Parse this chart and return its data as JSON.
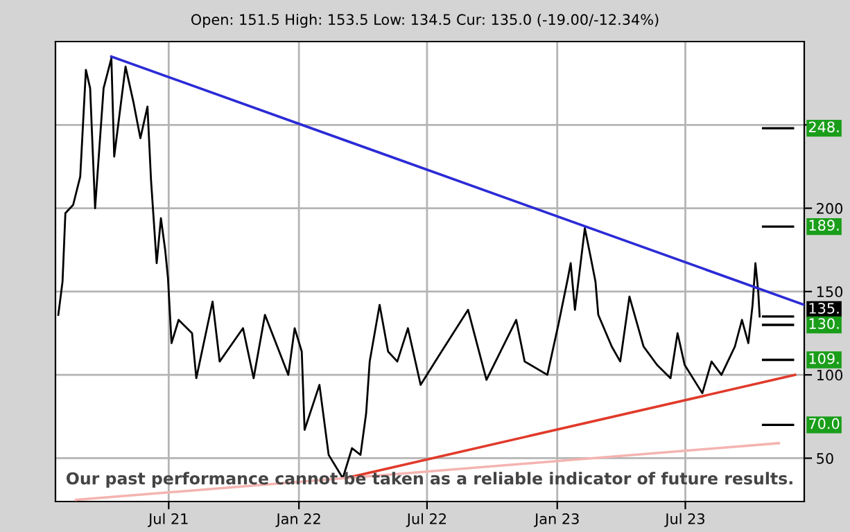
{
  "chart_data": {
    "type": "line",
    "title": "Open: 151.5 High: 153.5 Low: 134.5 Cur: 135.0 (-19.00/-12.34%)",
    "x": [
      "2021-01-26",
      "2021-02-01",
      "2021-02-05",
      "2021-02-16",
      "2021-02-26",
      "2021-03-06",
      "2021-03-12",
      "2021-03-19",
      "2021-03-31",
      "2021-04-11",
      "2021-04-15",
      "2021-05-01",
      "2021-05-12",
      "2021-05-22",
      "2021-06-01",
      "2021-06-06",
      "2021-06-14",
      "2021-06-20",
      "2021-06-26",
      "2021-06-30",
      "2021-07-05",
      "2021-07-15",
      "2021-08-03",
      "2021-08-09",
      "2021-09-01",
      "2021-09-11",
      "2021-10-14",
      "2021-10-29",
      "2021-11-14",
      "2021-12-17",
      "2021-12-26",
      "2022-01-05",
      "2022-01-09",
      "2022-01-30",
      "2022-02-12",
      "2022-03-04",
      "2022-03-17",
      "2022-03-29",
      "2022-04-06",
      "2022-04-11",
      "2022-04-25",
      "2022-05-07",
      "2022-05-20",
      "2022-06-04",
      "2022-06-22",
      "2022-07-17",
      "2022-08-28",
      "2022-09-23",
      "2022-11-04",
      "2022-11-16",
      "2022-12-18",
      "2023-01-03",
      "2023-01-16",
      "2023-01-20",
      "2023-01-26",
      "2023-02-09",
      "2023-02-18",
      "2023-02-24",
      "2023-02-28",
      "2023-03-19",
      "2023-03-31",
      "2023-04-13",
      "2023-05-03",
      "2023-05-22",
      "2023-06-10",
      "2023-06-20",
      "2023-06-30",
      "2023-07-25",
      "2023-08-07",
      "2023-08-21",
      "2023-09-09",
      "2023-09-19",
      "2023-09-28",
      "2023-10-04",
      "2023-10-08",
      "2023-10-12",
      "2023-10-14"
    ],
    "series": [
      {
        "color": "#000000",
        "values": [
          136,
          156,
          197,
          202,
          219,
          283,
          272,
          200,
          272,
          290,
          231,
          285,
          264,
          242,
          261,
          217,
          167,
          194,
          175,
          158,
          119,
          133,
          125,
          98,
          144,
          108,
          128,
          98,
          136,
          100,
          128,
          114,
          67,
          94,
          52,
          38,
          56,
          52,
          77,
          108,
          142,
          114,
          108,
          128,
          94,
          111,
          139,
          97,
          133,
          108,
          100,
          131,
          158,
          167,
          139,
          188,
          169,
          156,
          136,
          117,
          108,
          147,
          117,
          106,
          98,
          125,
          106,
          89,
          108,
          100,
          117,
          133,
          119,
          142,
          167,
          150,
          135
        ]
      },
      {
        "type": "line",
        "color": "#2b2bd6",
        "x": [
          "2021-04-11",
          "2023-12-16"
        ],
        "values": [
          291,
          142
        ]
      },
      {
        "type": "line",
        "color": "#e03a2a",
        "x": [
          "2022-03-08",
          "2023-12-03"
        ],
        "values": [
          38,
          100
        ]
      },
      {
        "type": "line",
        "color": "#f4b4b0",
        "x": [
          "2021-02-20",
          "2023-11-10"
        ],
        "values": [
          25,
          59
        ]
      }
    ],
    "xlim": [
      "2021-01-22",
      "2023-12-16"
    ],
    "xticks": [
      {
        "value": "2021-07-01",
        "label": "Jul 21"
      },
      {
        "value": "2022-01-01",
        "label": "Jan 22"
      },
      {
        "value": "2022-07-01",
        "label": "Jul 22"
      },
      {
        "value": "2023-01-01",
        "label": "Jan 23"
      },
      {
        "value": "2023-07-01",
        "label": "Jul 23"
      }
    ],
    "ylim": [
      24,
      300
    ],
    "yticks": [
      50,
      100,
      150,
      200,
      {
        "value": 250,
        "label": null
      }
    ],
    "ref_lines": [
      {
        "axis": "y",
        "value": 248,
        "label": "248."
      },
      {
        "axis": "y",
        "value": 189,
        "label": "189."
      },
      {
        "axis": "y",
        "value": 135,
        "label": "135.",
        "color": "#000000"
      },
      {
        "axis": "y",
        "value": 130,
        "label": "130."
      },
      {
        "axis": "y",
        "value": 109,
        "label": "109."
      },
      {
        "axis": "y",
        "value": 70,
        "label": "70.0"
      }
    ],
    "annotations": [
      "Our past performance cannot be taken as a reliable indicator of future results."
    ],
    "grid": true
  }
}
